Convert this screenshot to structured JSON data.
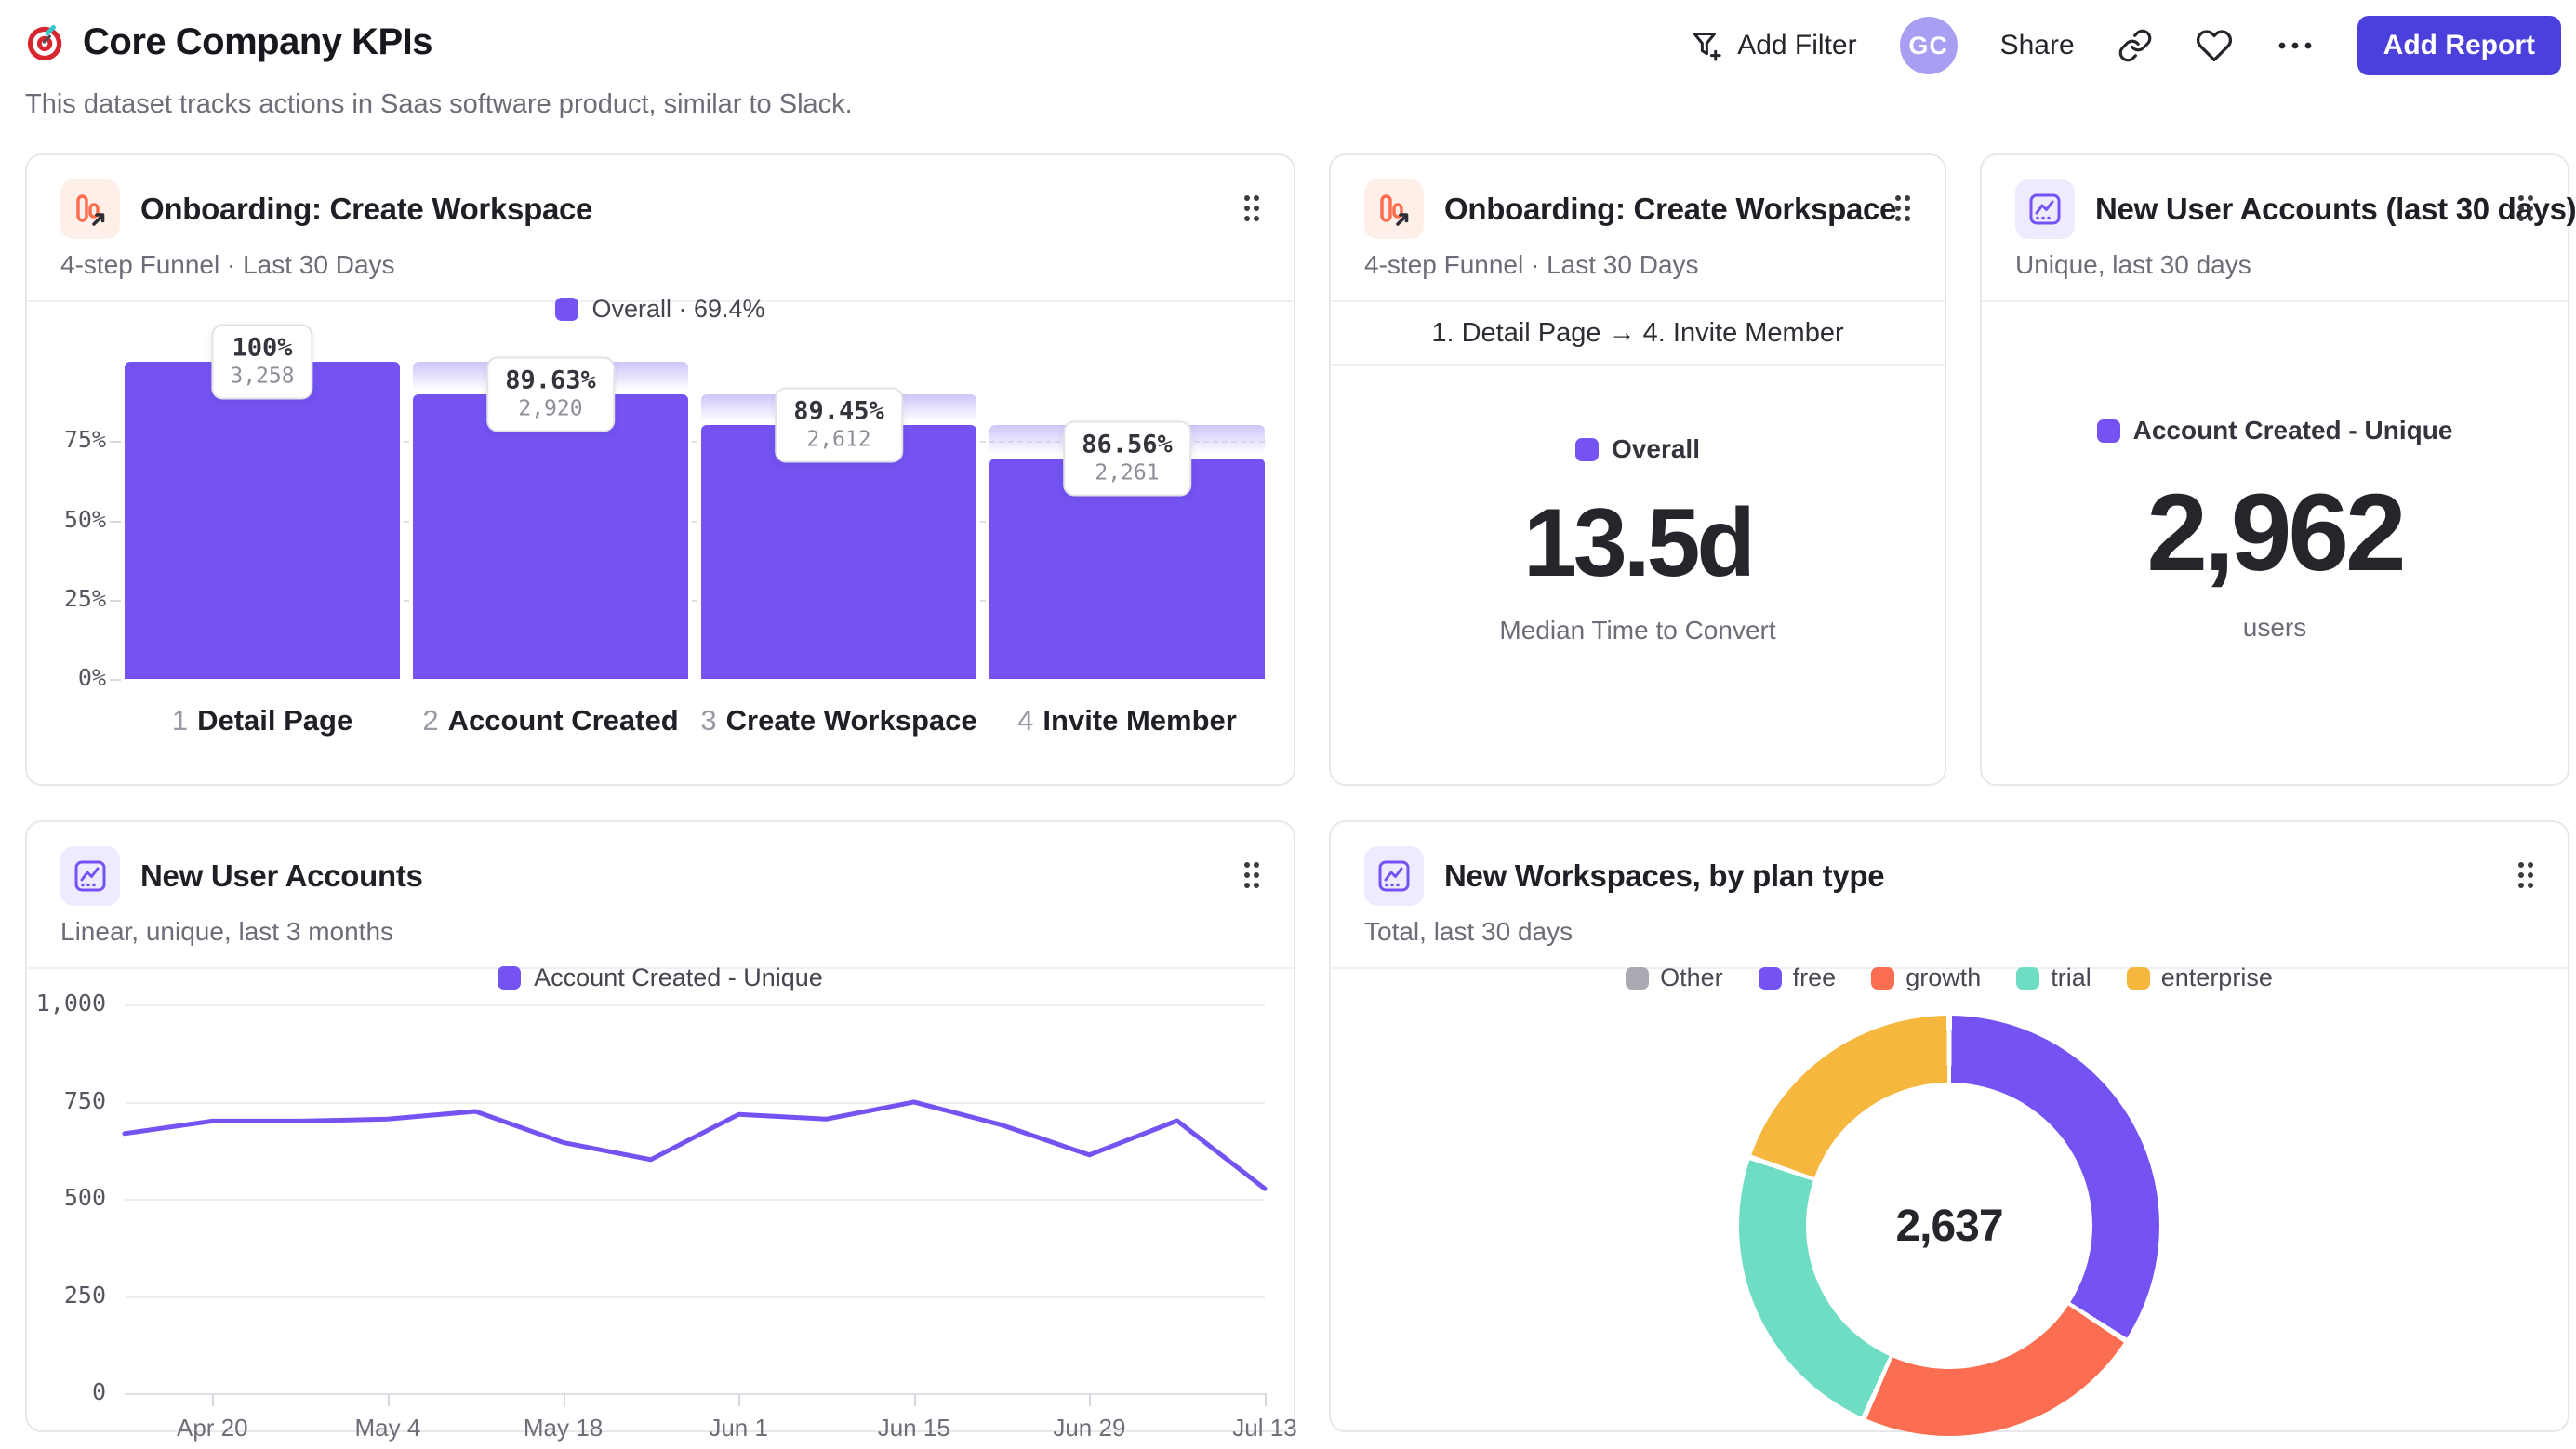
{
  "header": {
    "title": "Core Company KPIs",
    "subtitle": "This dataset tracks actions in Saas software product, similar to Slack.",
    "add_filter_label": "Add Filter",
    "avatar_initials": "GC",
    "share_label": "Share",
    "add_report_label": "Add Report"
  },
  "colors": {
    "purple": "#7453f2",
    "coral": "#fc6e51",
    "teal": "#6fdcc4",
    "amber": "#f5b73d",
    "gray_swatch": "#abaab2",
    "button": "#4b40db",
    "avatar_bg": "#a89ff3",
    "funnel_icon_orange": "#ff6b4a"
  },
  "cards": {
    "funnel": {
      "title": "Onboarding: Create Workspace",
      "subtitle": "4-step Funnel · Last 30 Days",
      "legend": "Overall · 69.4%"
    },
    "funnel_time": {
      "title": "Onboarding: Create Workspace",
      "subtitle": "4-step Funnel · Last 30 Days",
      "range_label": "1. Detail Page → 4. Invite Member",
      "legend": "Overall",
      "value": "13.5d",
      "caption": "Median Time to Convert"
    },
    "new_users_30d": {
      "title": "New User Accounts (last 30 days)",
      "subtitle": "Unique, last 30 days",
      "legend": "Account Created - Unique",
      "value": "2,962",
      "caption": "users"
    },
    "new_users_trend": {
      "title": "New User Accounts",
      "subtitle": "Linear, unique, last 3 months",
      "legend": "Account Created - Unique"
    },
    "workspaces_by_plan": {
      "title": "New Workspaces, by plan type",
      "subtitle": "Total, last 30 days",
      "center_value": "2,637"
    }
  },
  "chart_data": [
    {
      "id": "onboarding-funnel",
      "type": "bar",
      "title": "Onboarding: Create Workspace",
      "categories": [
        "Detail Page",
        "Account Created",
        "Create Workspace",
        "Invite Member"
      ],
      "step_numbers": [
        "1",
        "2",
        "3",
        "4"
      ],
      "values": [
        3258,
        2920,
        2612,
        2261
      ],
      "count_labels": [
        "3,258",
        "2,920",
        "2,612",
        "2,261"
      ],
      "step_conversion_labels": [
        "100%",
        "89.63%",
        "89.45%",
        "86.56%"
      ],
      "bar_height_pct_of_first": [
        100,
        89.63,
        80.17,
        69.4
      ],
      "overall_conversion": "69.4%",
      "y_ticks": [
        "0%",
        "25%",
        "50%",
        "75%"
      ],
      "y_tick_pcts": [
        0,
        25,
        50,
        75
      ],
      "ylim": [
        0,
        100
      ],
      "legend": [
        "Overall · 69.4%"
      ],
      "grid": "dashed horizontal"
    },
    {
      "id": "new-user-accounts-trend",
      "type": "line",
      "title": "New User Accounts",
      "series": [
        {
          "name": "Account Created - Unique",
          "values": [
            668,
            700,
            700,
            705,
            725,
            645,
            601,
            717,
            705,
            749,
            690,
            613,
            701,
            526
          ]
        }
      ],
      "x_tick_labels": [
        "Apr 20",
        "May 4",
        "May 18",
        "Jun 1",
        "Jun 15",
        "Jun 29",
        "Jul 13"
      ],
      "x_tick_point_indices": [
        1,
        3,
        5,
        7,
        9,
        11,
        13
      ],
      "n_points": 14,
      "y_ticks": [
        "0",
        "250",
        "500",
        "750",
        "1,000"
      ],
      "y_tick_values": [
        0,
        250,
        500,
        750,
        1000
      ],
      "ylim": [
        0,
        1000
      ],
      "line_color": "#7453f2",
      "grid": "solid horizontal",
      "legend_position": "top center"
    },
    {
      "id": "new-workspaces-by-plan",
      "type": "pie",
      "title": "New Workspaces, by plan type",
      "center_total": "2,637",
      "segments": [
        {
          "label": "free",
          "value": 901,
          "color": "#7453f2"
        },
        {
          "label": "growth",
          "value": 593,
          "color": "#fc6e51"
        },
        {
          "label": "trial",
          "value": 623,
          "color": "#6fdcc4"
        },
        {
          "label": "enterprise",
          "value": 520,
          "color": "#f5b73d"
        },
        {
          "label": "Other",
          "value": 0,
          "color": "#abaab2"
        }
      ],
      "legend_order": [
        "Other",
        "free",
        "growth",
        "trial",
        "enterprise"
      ],
      "donut": true,
      "start_angle_deg": 0,
      "clockwise": true
    }
  ]
}
